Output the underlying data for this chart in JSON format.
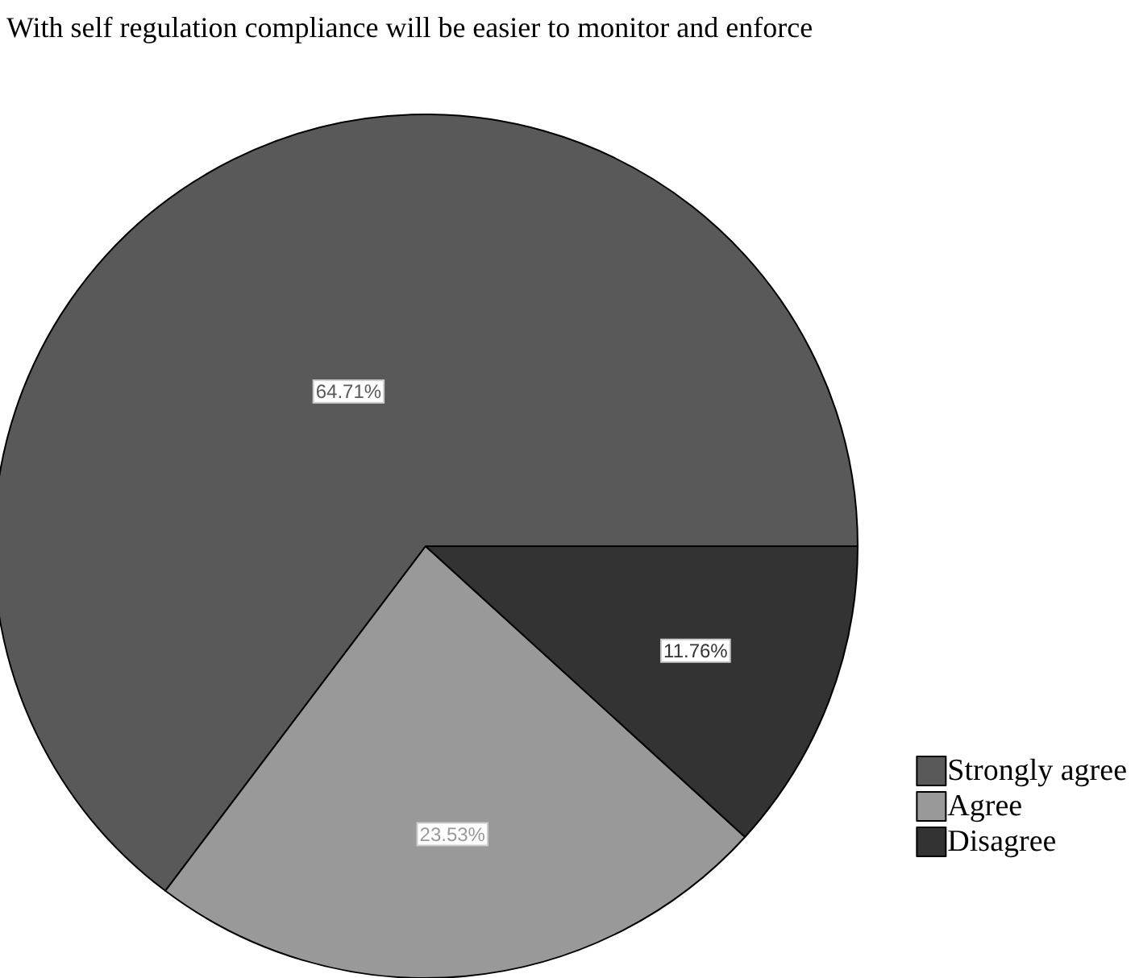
{
  "chart_data": {
    "type": "pie",
    "title": "With self regulation compliance will be easier to monitor and enforce",
    "categories": [
      "Strongly agree",
      "Agree",
      "Disagree"
    ],
    "values": [
      64.71,
      23.53,
      11.76
    ],
    "value_labels": [
      "64.71%",
      "23.53%",
      "11.76%"
    ],
    "colors": [
      "#595959",
      "#999999",
      "#333333"
    ],
    "legend": "bottom right"
  }
}
